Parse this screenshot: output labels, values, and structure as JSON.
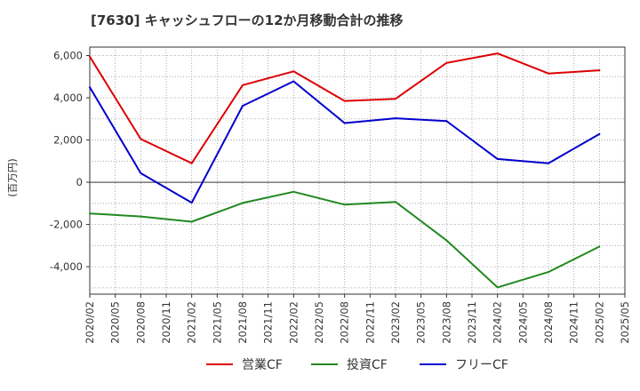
{
  "chart_data": {
    "type": "line",
    "title": "[7630]  キャッシュフローの12か月移動合計の推移",
    "ylabel": "(百万円)",
    "xlabel": "",
    "ylim": [
      -5300,
      6400
    ],
    "yticks": [
      6000,
      4000,
      2000,
      0,
      -2000,
      -4000
    ],
    "ytick_labels": [
      "6,000",
      "4,000",
      "2,000",
      "0",
      "-2,000",
      "-4,000"
    ],
    "categories": [
      "2020/02",
      "2020/05",
      "2020/08",
      "2020/11",
      "2021/02",
      "2021/05",
      "2021/08",
      "2021/11",
      "2022/02",
      "2022/05",
      "2022/08",
      "2022/11",
      "2023/02",
      "2023/05",
      "2023/08",
      "2023/11",
      "2024/02",
      "2024/05",
      "2024/08",
      "2024/11",
      "2025/02",
      "2025/05"
    ],
    "series": [
      {
        "name": "営業CF",
        "color": "#dd0000",
        "x": [
          "2020/02",
          "2020/08",
          "2021/02",
          "2021/08",
          "2022/02",
          "2022/08",
          "2023/02",
          "2023/08",
          "2024/02",
          "2024/08",
          "2025/02"
        ],
        "values": [
          5950,
          2050,
          900,
          4600,
          5250,
          3850,
          3950,
          5650,
          6100,
          5150,
          5300
        ]
      },
      {
        "name": "投資CF",
        "color": "#228822",
        "x": [
          "2020/02",
          "2020/08",
          "2021/02",
          "2021/08",
          "2022/02",
          "2022/08",
          "2023/02",
          "2023/08",
          "2024/02",
          "2024/08",
          "2025/02"
        ],
        "values": [
          -1480,
          -1620,
          -1870,
          -980,
          -450,
          -1060,
          -930,
          -2750,
          -4980,
          -4250,
          -3050
        ]
      },
      {
        "name": "フリーCF",
        "color": "#0000cc",
        "x": [
          "2020/02",
          "2020/08",
          "2021/02",
          "2021/08",
          "2022/02",
          "2022/08",
          "2023/02",
          "2023/08",
          "2024/02",
          "2024/08",
          "2025/02"
        ],
        "values": [
          4500,
          430,
          -970,
          3620,
          4780,
          2800,
          3030,
          2900,
          1100,
          900,
          2280
        ]
      }
    ],
    "grid": true,
    "legend_position": "bottom"
  }
}
